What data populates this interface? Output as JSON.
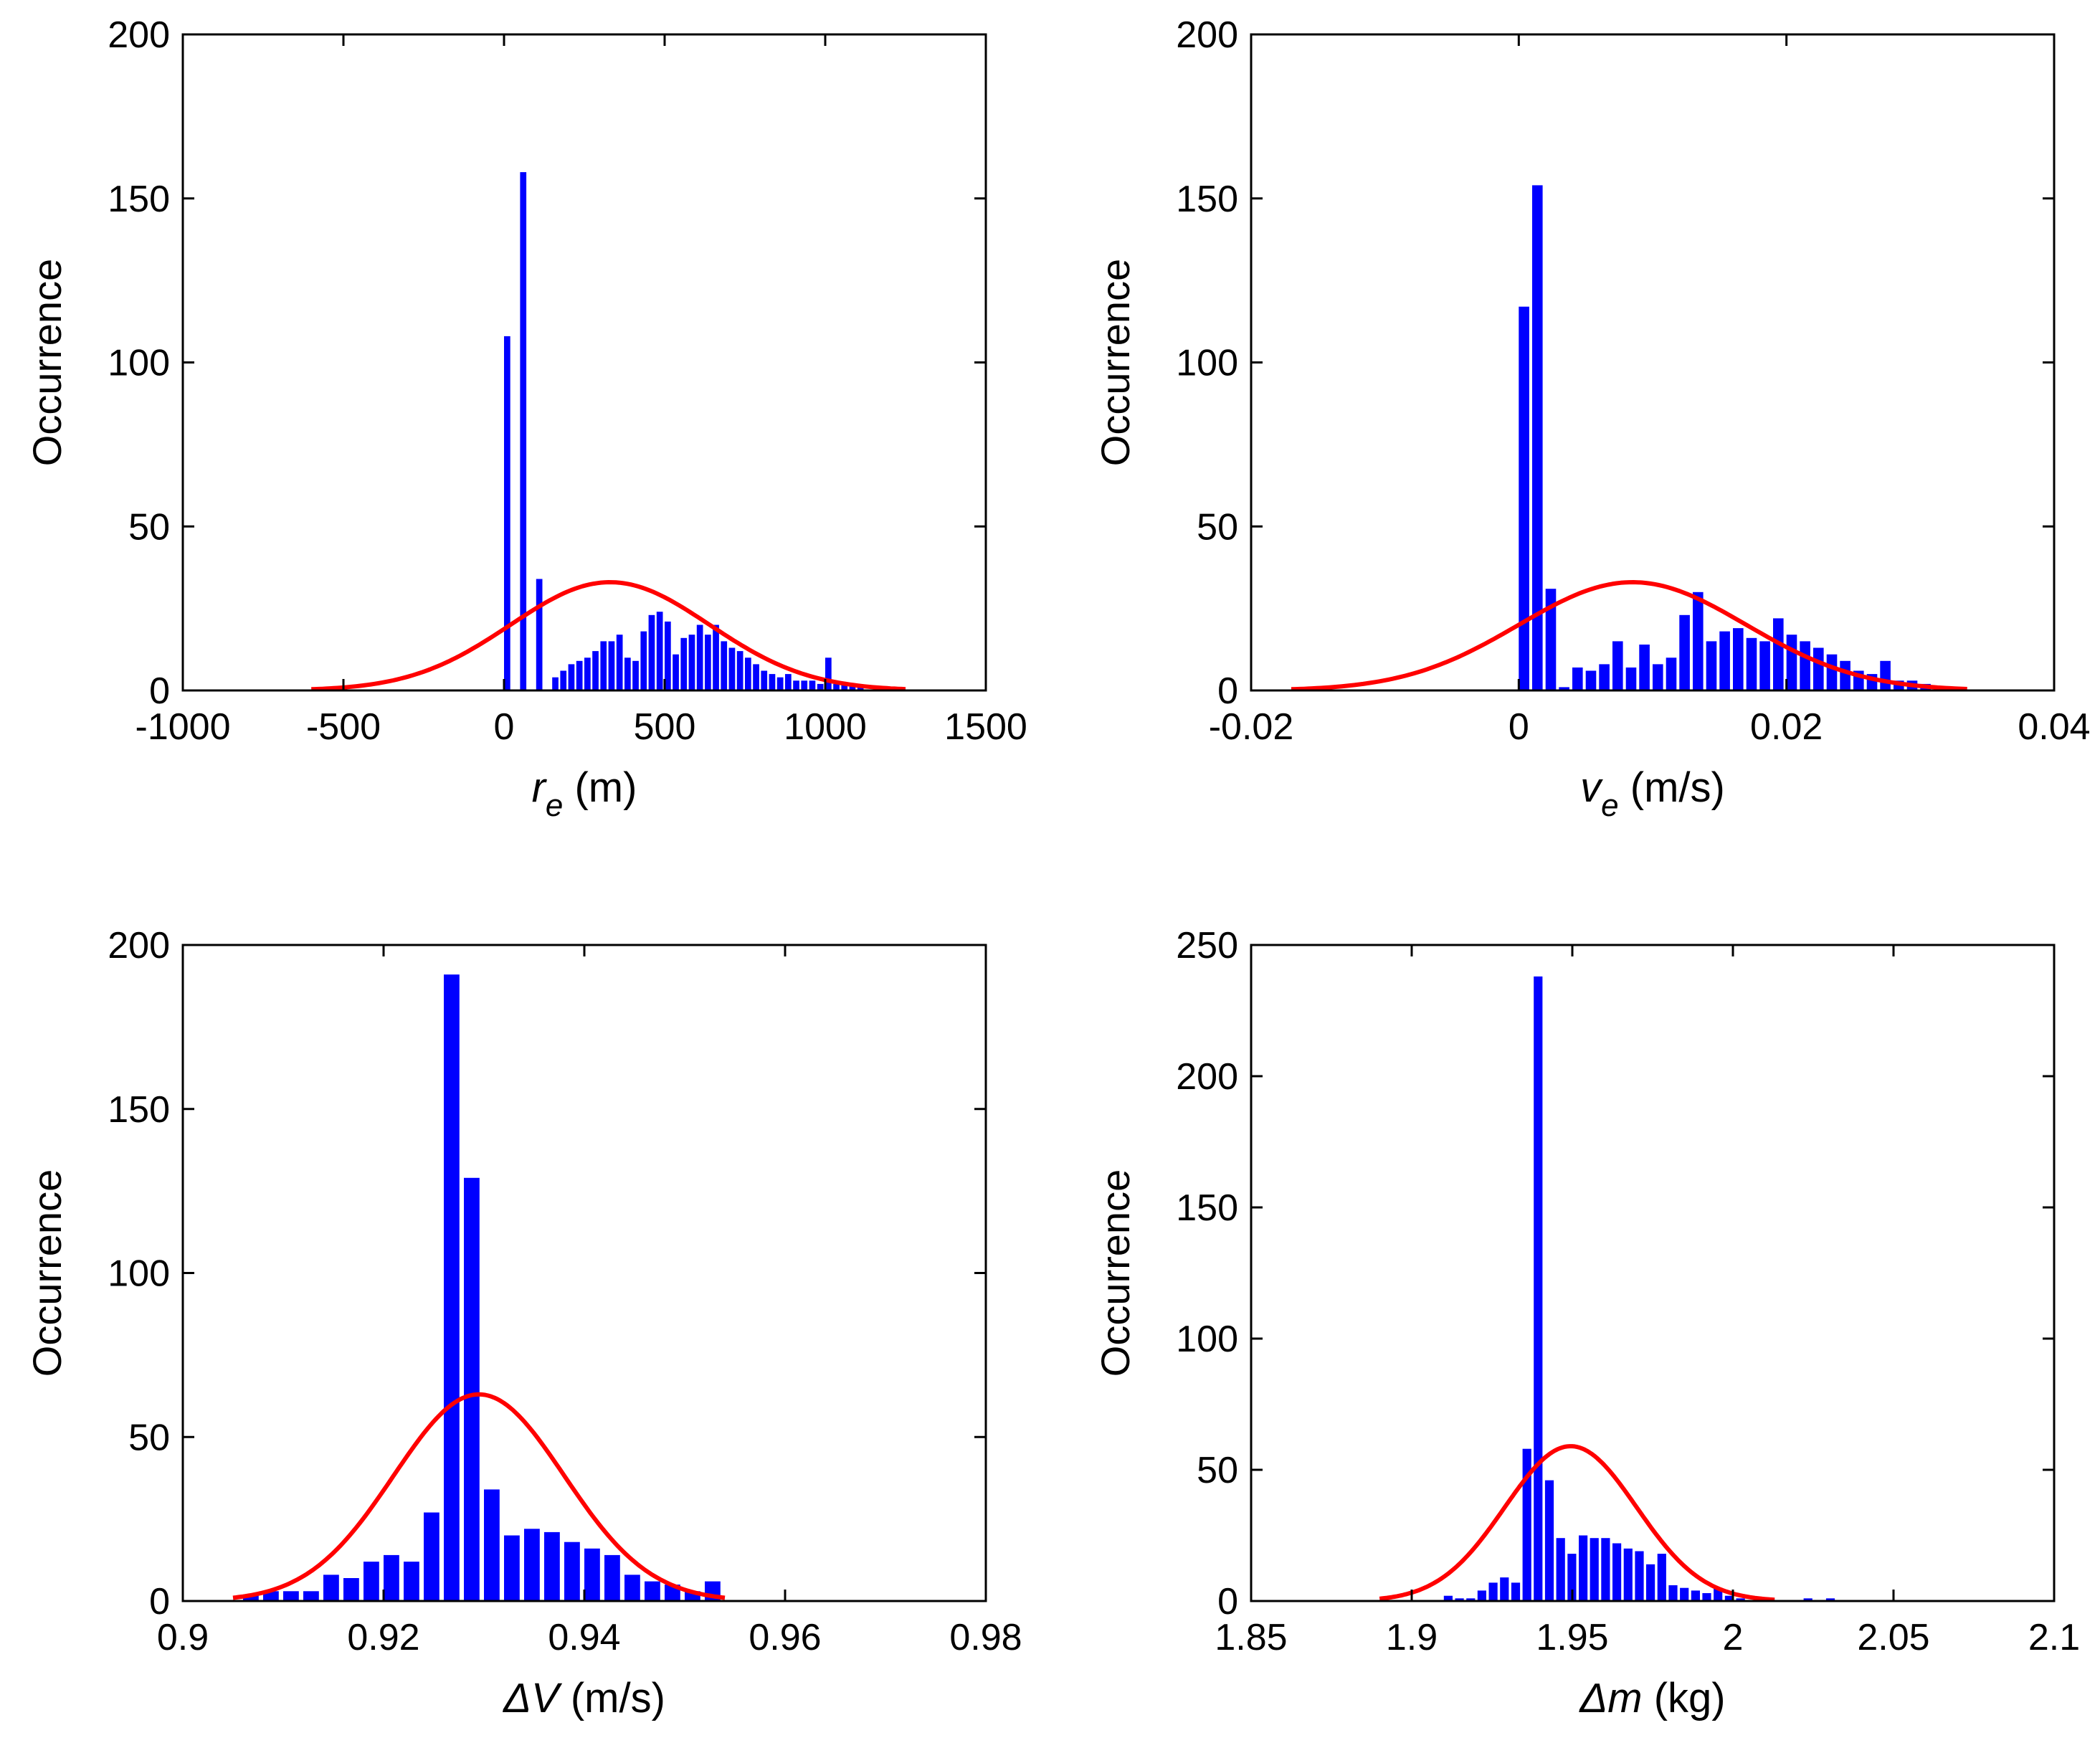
{
  "chart_data": [
    {
      "type": "bar",
      "id": "re",
      "title": "",
      "xlabel_var": "r",
      "xlabel_sub": "e",
      "xlabel_unit": " (m)",
      "ylabel": "Occurrence",
      "xlim": [
        -1000,
        1500
      ],
      "ylim": [
        0,
        200
      ],
      "xticks": [
        -1000,
        -500,
        0,
        500,
        1000,
        1500
      ],
      "xtick_labels": [
        "-1000",
        "-500",
        "0",
        "500",
        "1000",
        "1500"
      ],
      "yticks": [
        0,
        50,
        100,
        150,
        200
      ],
      "ytick_labels": [
        "0",
        "50",
        "100",
        "150",
        "200"
      ],
      "bin_width": 25,
      "bins": [
        {
          "x": 0,
          "y": 108
        },
        {
          "x": 25,
          "y": 0
        },
        {
          "x": 50,
          "y": 158
        },
        {
          "x": 75,
          "y": 0
        },
        {
          "x": 100,
          "y": 34
        },
        {
          "x": 125,
          "y": 0
        },
        {
          "x": 150,
          "y": 4
        },
        {
          "x": 175,
          "y": 6
        },
        {
          "x": 200,
          "y": 8
        },
        {
          "x": 225,
          "y": 9
        },
        {
          "x": 250,
          "y": 10
        },
        {
          "x": 275,
          "y": 12
        },
        {
          "x": 300,
          "y": 15
        },
        {
          "x": 325,
          "y": 15
        },
        {
          "x": 350,
          "y": 17
        },
        {
          "x": 375,
          "y": 10
        },
        {
          "x": 400,
          "y": 9
        },
        {
          "x": 425,
          "y": 18
        },
        {
          "x": 450,
          "y": 23
        },
        {
          "x": 475,
          "y": 24
        },
        {
          "x": 500,
          "y": 21
        },
        {
          "x": 525,
          "y": 11
        },
        {
          "x": 550,
          "y": 16
        },
        {
          "x": 575,
          "y": 17
        },
        {
          "x": 600,
          "y": 20
        },
        {
          "x": 625,
          "y": 17
        },
        {
          "x": 650,
          "y": 20
        },
        {
          "x": 675,
          "y": 15
        },
        {
          "x": 700,
          "y": 13
        },
        {
          "x": 725,
          "y": 12
        },
        {
          "x": 750,
          "y": 10
        },
        {
          "x": 775,
          "y": 8
        },
        {
          "x": 800,
          "y": 6
        },
        {
          "x": 825,
          "y": 5
        },
        {
          "x": 850,
          "y": 4
        },
        {
          "x": 875,
          "y": 5
        },
        {
          "x": 900,
          "y": 3
        },
        {
          "x": 925,
          "y": 3
        },
        {
          "x": 950,
          "y": 3
        },
        {
          "x": 975,
          "y": 2
        },
        {
          "x": 1000,
          "y": 10
        },
        {
          "x": 1025,
          "y": 2
        },
        {
          "x": 1050,
          "y": 2
        },
        {
          "x": 1075,
          "y": 2
        },
        {
          "x": 1100,
          "y": 1
        }
      ],
      "fit": {
        "mean": 330,
        "amplitude": 33,
        "sigma": 310,
        "range": [
          -600,
          1250
        ]
      }
    },
    {
      "type": "bar",
      "id": "ve",
      "title": "",
      "xlabel_var": "v",
      "xlabel_sub": "e",
      "xlabel_unit": " (m/s)",
      "ylabel": "Occurrence",
      "xlim": [
        -0.02,
        0.04
      ],
      "ylim": [
        0,
        200
      ],
      "xticks": [
        -0.02,
        0,
        0.02,
        0.04
      ],
      "xtick_labels": [
        "-0.02",
        "0",
        "0.02",
        "0.04"
      ],
      "yticks": [
        0,
        50,
        100,
        150,
        200
      ],
      "ytick_labels": [
        "0",
        "50",
        "100",
        "150",
        "200"
      ],
      "bin_width": 0.001,
      "bins": [
        {
          "x": 0.0,
          "y": 117
        },
        {
          "x": 0.001,
          "y": 154
        },
        {
          "x": 0.002,
          "y": 31
        },
        {
          "x": 0.003,
          "y": 1
        },
        {
          "x": 0.004,
          "y": 7
        },
        {
          "x": 0.005,
          "y": 6
        },
        {
          "x": 0.006,
          "y": 8
        },
        {
          "x": 0.007,
          "y": 15
        },
        {
          "x": 0.008,
          "y": 7
        },
        {
          "x": 0.009,
          "y": 14
        },
        {
          "x": 0.01,
          "y": 8
        },
        {
          "x": 0.011,
          "y": 10
        },
        {
          "x": 0.012,
          "y": 23
        },
        {
          "x": 0.013,
          "y": 30
        },
        {
          "x": 0.014,
          "y": 15
        },
        {
          "x": 0.015,
          "y": 18
        },
        {
          "x": 0.016,
          "y": 19
        },
        {
          "x": 0.017,
          "y": 16
        },
        {
          "x": 0.018,
          "y": 15
        },
        {
          "x": 0.019,
          "y": 22
        },
        {
          "x": 0.02,
          "y": 17
        },
        {
          "x": 0.021,
          "y": 15
        },
        {
          "x": 0.022,
          "y": 13
        },
        {
          "x": 0.023,
          "y": 11
        },
        {
          "x": 0.024,
          "y": 9
        },
        {
          "x": 0.025,
          "y": 6
        },
        {
          "x": 0.026,
          "y": 5
        },
        {
          "x": 0.027,
          "y": 9
        },
        {
          "x": 0.028,
          "y": 3
        },
        {
          "x": 0.029,
          "y": 3
        },
        {
          "x": 0.03,
          "y": 2
        }
      ],
      "fit": {
        "mean": 0.0085,
        "amplitude": 33,
        "sigma": 0.0085,
        "range": [
          -0.017,
          0.0335
        ]
      }
    },
    {
      "type": "bar",
      "id": "dv",
      "title": "",
      "xlabel_var": "ΔV",
      "xlabel_sub": "",
      "xlabel_unit": " (m/s)",
      "ylabel": "Occurrence",
      "xlim": [
        0.9,
        0.98
      ],
      "ylim": [
        0,
        200
      ],
      "xticks": [
        0.9,
        0.92,
        0.94,
        0.96,
        0.98
      ],
      "xtick_labels": [
        "0.9",
        "0.92",
        "0.94",
        "0.96",
        "0.98"
      ],
      "yticks": [
        0,
        50,
        100,
        150,
        200
      ],
      "ytick_labels": [
        "0",
        "50",
        "100",
        "150",
        "200"
      ],
      "bin_width": 0.002,
      "bins": [
        {
          "x": 0.906,
          "y": 2
        },
        {
          "x": 0.908,
          "y": 3
        },
        {
          "x": 0.91,
          "y": 3
        },
        {
          "x": 0.912,
          "y": 3
        },
        {
          "x": 0.914,
          "y": 8
        },
        {
          "x": 0.916,
          "y": 7
        },
        {
          "x": 0.918,
          "y": 12
        },
        {
          "x": 0.92,
          "y": 14
        },
        {
          "x": 0.922,
          "y": 12
        },
        {
          "x": 0.924,
          "y": 27
        },
        {
          "x": 0.926,
          "y": 191
        },
        {
          "x": 0.928,
          "y": 129
        },
        {
          "x": 0.93,
          "y": 34
        },
        {
          "x": 0.932,
          "y": 20
        },
        {
          "x": 0.934,
          "y": 22
        },
        {
          "x": 0.936,
          "y": 21
        },
        {
          "x": 0.938,
          "y": 18
        },
        {
          "x": 0.94,
          "y": 16
        },
        {
          "x": 0.942,
          "y": 14
        },
        {
          "x": 0.944,
          "y": 8
        },
        {
          "x": 0.946,
          "y": 6
        },
        {
          "x": 0.948,
          "y": 5
        },
        {
          "x": 0.95,
          "y": 3
        },
        {
          "x": 0.952,
          "y": 6
        }
      ],
      "fit": {
        "mean": 0.9295,
        "amplitude": 63,
        "sigma": 0.0085,
        "range": [
          0.905,
          0.954
        ]
      }
    },
    {
      "type": "bar",
      "id": "dm",
      "title": "",
      "xlabel_var": "Δm",
      "xlabel_sub": "",
      "xlabel_unit": " (kg)",
      "ylabel": "Occurrence",
      "xlim": [
        1.85,
        2.1
      ],
      "ylim": [
        0,
        250
      ],
      "xticks": [
        1.85,
        1.9,
        1.95,
        2,
        2.05,
        2.1
      ],
      "xtick_labels": [
        "1.85",
        "1.9",
        "1.95",
        "2",
        "2.05",
        "2.1"
      ],
      "yticks": [
        0,
        50,
        100,
        150,
        200,
        250
      ],
      "ytick_labels": [
        "0",
        "50",
        "100",
        "150",
        "200",
        "250"
      ],
      "bin_width": 0.0035,
      "bins": [
        {
          "x": 1.91,
          "y": 2
        },
        {
          "x": 1.9135,
          "y": 1
        },
        {
          "x": 1.917,
          "y": 1
        },
        {
          "x": 1.9205,
          "y": 4
        },
        {
          "x": 1.924,
          "y": 7
        },
        {
          "x": 1.9275,
          "y": 9
        },
        {
          "x": 1.931,
          "y": 7
        },
        {
          "x": 1.9345,
          "y": 58
        },
        {
          "x": 1.938,
          "y": 238
        },
        {
          "x": 1.9415,
          "y": 46
        },
        {
          "x": 1.945,
          "y": 24
        },
        {
          "x": 1.9485,
          "y": 18
        },
        {
          "x": 1.952,
          "y": 25
        },
        {
          "x": 1.9555,
          "y": 24
        },
        {
          "x": 1.959,
          "y": 24
        },
        {
          "x": 1.9625,
          "y": 22
        },
        {
          "x": 1.966,
          "y": 20
        },
        {
          "x": 1.9695,
          "y": 19
        },
        {
          "x": 1.973,
          "y": 14
        },
        {
          "x": 1.9765,
          "y": 18
        },
        {
          "x": 1.98,
          "y": 6
        },
        {
          "x": 1.9835,
          "y": 5
        },
        {
          "x": 1.987,
          "y": 4
        },
        {
          "x": 1.9905,
          "y": 3
        },
        {
          "x": 1.994,
          "y": 5
        },
        {
          "x": 1.9975,
          "y": 2
        },
        {
          "x": 2.001,
          "y": 1
        },
        {
          "x": 2.022,
          "y": 1
        },
        {
          "x": 2.029,
          "y": 1
        }
      ],
      "fit": {
        "mean": 1.9495,
        "amplitude": 59,
        "sigma": 0.0205,
        "range": [
          1.89,
          2.013
        ]
      }
    }
  ],
  "colors": {
    "bars": "#0000ff",
    "fit": "#ff0000",
    "axes": "#000000"
  }
}
